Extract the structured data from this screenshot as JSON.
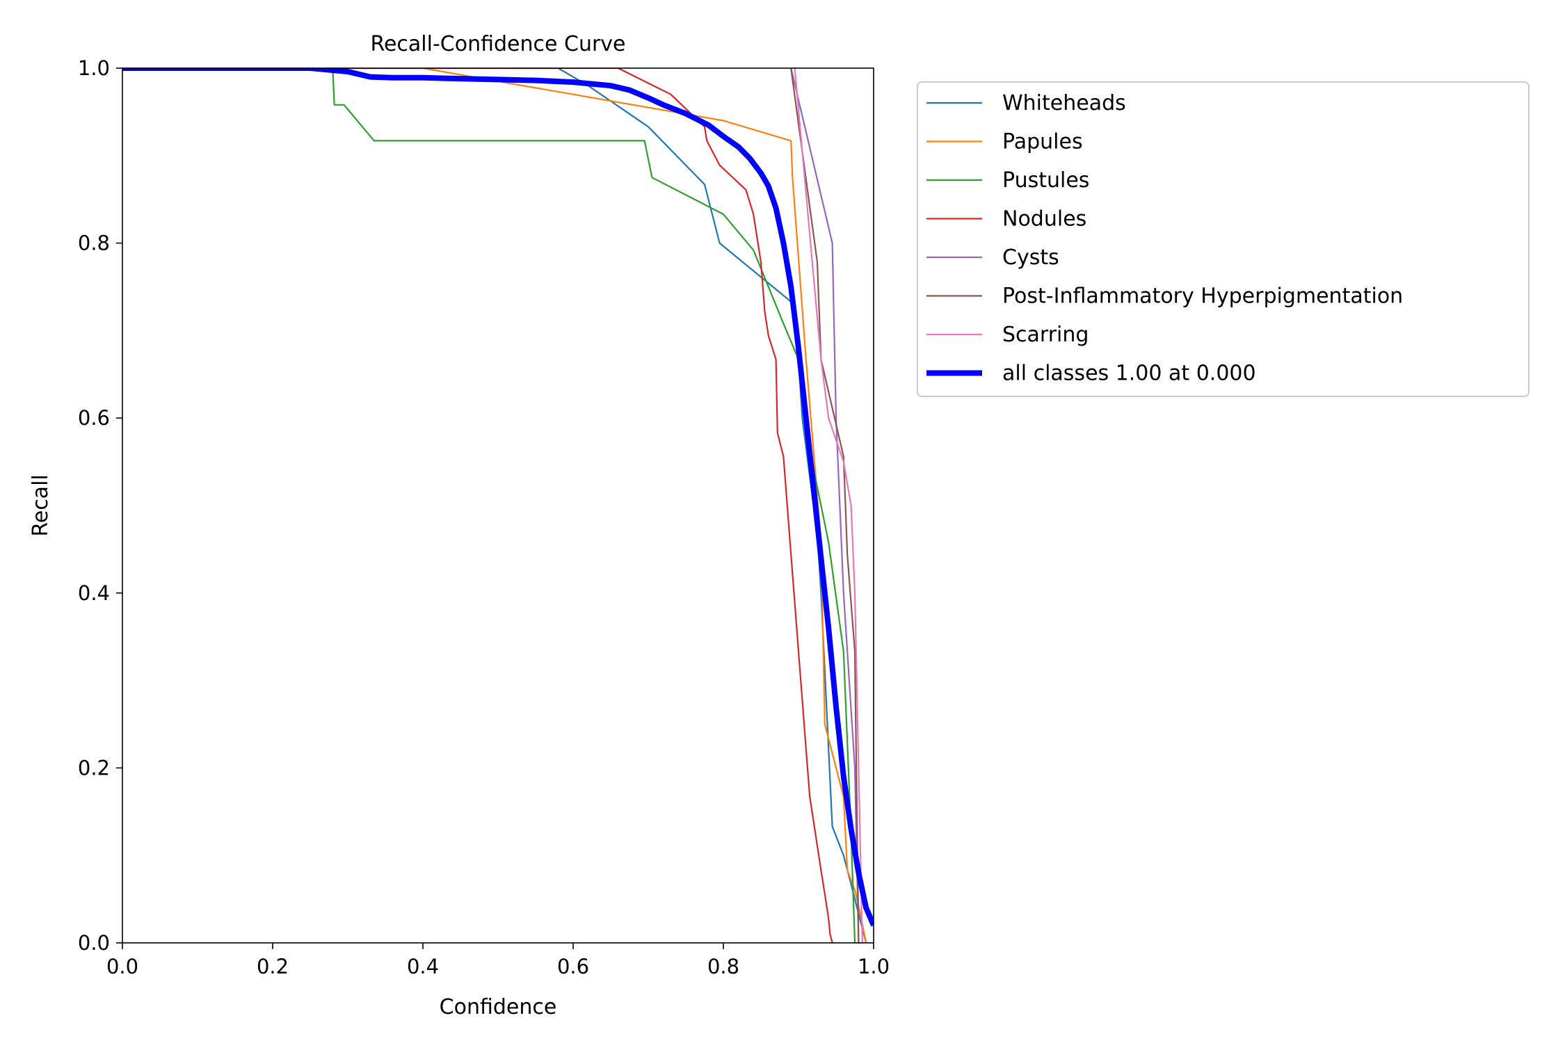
{
  "chart_data": {
    "type": "line",
    "title": "Recall-Confidence Curve",
    "xlabel": "Confidence",
    "ylabel": "Recall",
    "xlim": [
      0,
      1
    ],
    "ylim": [
      0,
      1
    ],
    "xticks": [
      "0.0",
      "0.2",
      "0.4",
      "0.6",
      "0.8",
      "1.0"
    ],
    "yticks": [
      "0.0",
      "0.2",
      "0.4",
      "0.6",
      "0.8",
      "1.0"
    ],
    "grid": false,
    "legend_position": "outside-right-top",
    "series": [
      {
        "name": "Whiteheads",
        "color": "#1f77b4",
        "x": [
          0,
          0.58,
          0.62,
          0.7,
          0.775,
          0.795,
          0.89,
          0.9,
          0.905,
          0.915,
          0.925,
          0.93,
          0.945,
          0.96,
          0.97,
          0.98,
          0.99
        ],
        "y": [
          1.0,
          1.0,
          0.98,
          0.933,
          0.867,
          0.8,
          0.733,
          0.667,
          0.6,
          0.533,
          0.467,
          0.4,
          0.133,
          0.1,
          0.067,
          0.033,
          0.0
        ]
      },
      {
        "name": "Papules",
        "color": "#ff7f0e",
        "x": [
          0,
          0.4,
          0.5,
          0.6,
          0.7,
          0.8,
          0.89,
          0.892,
          0.91,
          0.93,
          0.935,
          0.96,
          0.965,
          0.975,
          0.98,
          0.99
        ],
        "y": [
          1.0,
          1.0,
          0.985,
          0.97,
          0.955,
          0.94,
          0.917,
          0.875,
          0.667,
          0.458,
          0.25,
          0.167,
          0.083,
          0.06,
          0.042,
          0.0
        ]
      },
      {
        "name": "Pustules",
        "color": "#2ca02c",
        "x": [
          0,
          0.28,
          0.282,
          0.295,
          0.335,
          0.4,
          0.6,
          0.695,
          0.705,
          0.8,
          0.84,
          0.88,
          0.9,
          0.92,
          0.94,
          0.96,
          0.97,
          0.975
        ],
        "y": [
          1.0,
          1.0,
          0.958,
          0.958,
          0.917,
          0.917,
          0.917,
          0.917,
          0.875,
          0.833,
          0.792,
          0.708,
          0.667,
          0.542,
          0.458,
          0.333,
          0.125,
          0.0
        ]
      },
      {
        "name": "Nodules",
        "color": "#d62728",
        "x": [
          0,
          0.66,
          0.73,
          0.775,
          0.778,
          0.795,
          0.83,
          0.84,
          0.85,
          0.855,
          0.86,
          0.87,
          0.872,
          0.88,
          0.885,
          0.89,
          0.895,
          0.9,
          0.905,
          0.91,
          0.915,
          0.92,
          0.925,
          0.93,
          0.935,
          0.94,
          0.942,
          0.945,
          0.946
        ],
        "y": [
          1.0,
          1.0,
          0.97,
          0.933,
          0.917,
          0.889,
          0.861,
          0.833,
          0.778,
          0.722,
          0.694,
          0.667,
          0.583,
          0.556,
          0.5,
          0.444,
          0.389,
          0.333,
          0.278,
          0.222,
          0.167,
          0.139,
          0.111,
          0.083,
          0.056,
          0.028,
          0.01,
          0.0,
          0.0
        ]
      },
      {
        "name": "Cysts",
        "color": "#9467bd",
        "x": [
          0.89,
          0.945,
          0.95,
          0.96,
          0.975,
          0.98
        ],
        "y": [
          1.0,
          0.8,
          0.6,
          0.4,
          0.2,
          0.0
        ]
      },
      {
        "name": "Post-Inflammatory Hyperpigmentation",
        "color": "#8c564b",
        "x": [
          0.89,
          0.925,
          0.93,
          0.96,
          0.965,
          0.975,
          0.98
        ],
        "y": [
          1.0,
          0.778,
          0.667,
          0.556,
          0.444,
          0.333,
          0.0
        ]
      },
      {
        "name": "Scarring",
        "color": "#e377c2",
        "x": [
          0.895,
          0.93,
          0.94,
          0.96,
          0.97,
          0.975,
          0.98,
          0.985
        ],
        "y": [
          1.0,
          0.667,
          0.6,
          0.55,
          0.5,
          0.4,
          0.2,
          0.0
        ]
      },
      {
        "name": "all classes 1.00 at 0.000",
        "color": "#0000ff",
        "bold": true,
        "x": [
          0,
          0.25,
          0.3,
          0.33,
          0.36,
          0.4,
          0.45,
          0.5,
          0.55,
          0.6,
          0.65,
          0.675,
          0.7,
          0.72,
          0.75,
          0.78,
          0.8,
          0.82,
          0.835,
          0.85,
          0.86,
          0.87,
          0.88,
          0.89,
          0.9,
          0.91,
          0.92,
          0.93,
          0.94,
          0.95,
          0.96,
          0.97,
          0.98,
          0.99,
          1.0
        ],
        "y": [
          1.0,
          1.0,
          0.996,
          0.99,
          0.989,
          0.989,
          0.988,
          0.987,
          0.986,
          0.984,
          0.98,
          0.975,
          0.966,
          0.958,
          0.948,
          0.935,
          0.922,
          0.91,
          0.897,
          0.88,
          0.865,
          0.84,
          0.8,
          0.75,
          0.68,
          0.6,
          0.52,
          0.44,
          0.36,
          0.27,
          0.19,
          0.13,
          0.08,
          0.04,
          0.02
        ]
      }
    ]
  }
}
